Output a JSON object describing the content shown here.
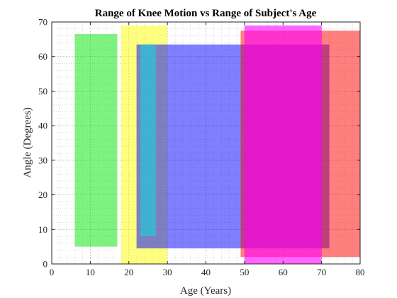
{
  "chart_data": {
    "type": "range-rectangles",
    "title": "Range of Knee Motion vs Range of Subject's Age",
    "xlabel": "Age (Years)",
    "ylabel": "Angle (Degrees)",
    "xlim": [
      0,
      80
    ],
    "ylim": [
      0,
      70
    ],
    "xticks": [
      0,
      10,
      20,
      30,
      40,
      50,
      60,
      70,
      80
    ],
    "yticks": [
      0,
      10,
      20,
      30,
      40,
      50,
      60,
      70
    ],
    "grid": true,
    "minor_grid": true,
    "series": [
      {
        "age_range": [
          6,
          17
        ],
        "angle_range": [
          5,
          66.5
        ],
        "color": "#00e600",
        "opacity": 0.5
      },
      {
        "age_range": [
          18,
          30
        ],
        "angle_range": [
          0,
          69
        ],
        "color": "#ffff00",
        "opacity": 0.5
      },
      {
        "age_range": [
          22,
          72
        ],
        "angle_range": [
          4.5,
          63.5
        ],
        "color": "#0000ff",
        "opacity": 0.5
      },
      {
        "age_range": [
          23,
          27
        ],
        "angle_range": [
          8,
          63.5
        ],
        "color": "#00e6e6",
        "opacity": 0.5
      },
      {
        "age_range": [
          49,
          80
        ],
        "angle_range": [
          2,
          67.5
        ],
        "color": "#ff0000",
        "opacity": 0.5
      },
      {
        "age_range": [
          50,
          70
        ],
        "angle_range": [
          0,
          69
        ],
        "color": "#ff00ff",
        "opacity": 0.6
      }
    ]
  }
}
